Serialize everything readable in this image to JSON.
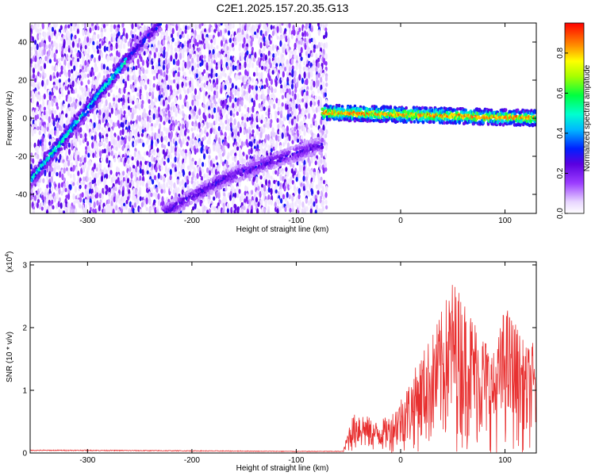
{
  "title": "C2E1.2025.157.20.35.G13",
  "chart_data": [
    {
      "type": "heatmap",
      "xlabel": "Height of straight line (km)",
      "ylabel": "Frequency (Hz)",
      "xlim": [
        -355,
        130
      ],
      "ylim": [
        -50,
        50
      ],
      "x_ticks": [
        -300,
        -200,
        -100,
        0,
        100
      ],
      "y_ticks": [
        -40,
        -20,
        0,
        20,
        40
      ],
      "colorbar": {
        "label": "Normalized spectral amplitude",
        "range": [
          0,
          0.95
        ],
        "ticks": [
          0.0,
          0.2,
          0.4,
          0.6,
          0.8
        ],
        "tick_labels": [
          "0.0",
          "0.2",
          "0.4",
          "0.6",
          "0.8"
        ],
        "colormap": "rainbow"
      },
      "features": {
        "noise_region_x": [
          -355,
          -72
        ],
        "lines": [
          {
            "x": [
              -355,
              -262
            ],
            "y": [
              -33,
              31
            ],
            "peak": 0.55
          },
          {
            "x": [
              -262,
              -230
            ],
            "y": [
              31,
              50
            ],
            "peak": 0.35
          },
          {
            "x": [
              -228,
              -170,
              -120,
              -75
            ],
            "y": [
              -50,
              -32,
              -22,
              -14
            ],
            "peak": 0.3
          },
          {
            "x": [
              -75,
              130
            ],
            "y": [
              3,
              0
            ],
            "peak": 0.9
          }
        ]
      }
    },
    {
      "type": "line",
      "xlabel": "Height of straight line (km)",
      "ylabel": "SNR (10 * v/v)",
      "multiplier_label": "(x10",
      "multiplier_exp": "4",
      "multiplier_close": ")",
      "xlim": [
        -355,
        130
      ],
      "ylim": [
        0,
        3.05
      ],
      "x_ticks": [
        -300,
        -200,
        -100,
        0,
        100
      ],
      "y_ticks": [
        0,
        1,
        2,
        3
      ],
      "series_color": "#e83030",
      "envelope": {
        "x": [
          -355,
          -300,
          -200,
          -100,
          -55,
          -48,
          -40,
          -25,
          -10,
          0,
          10,
          20,
          30,
          40,
          50,
          60,
          70,
          80,
          90,
          100,
          110,
          120,
          130
        ],
        "y": [
          0.05,
          0.05,
          0.04,
          0.03,
          0.03,
          0.55,
          0.7,
          0.5,
          0.6,
          0.9,
          1.2,
          1.6,
          1.9,
          2.3,
          2.8,
          2.5,
          2.2,
          1.9,
          1.6,
          2.4,
          2.1,
          1.7,
          1.8
        ]
      }
    }
  ]
}
